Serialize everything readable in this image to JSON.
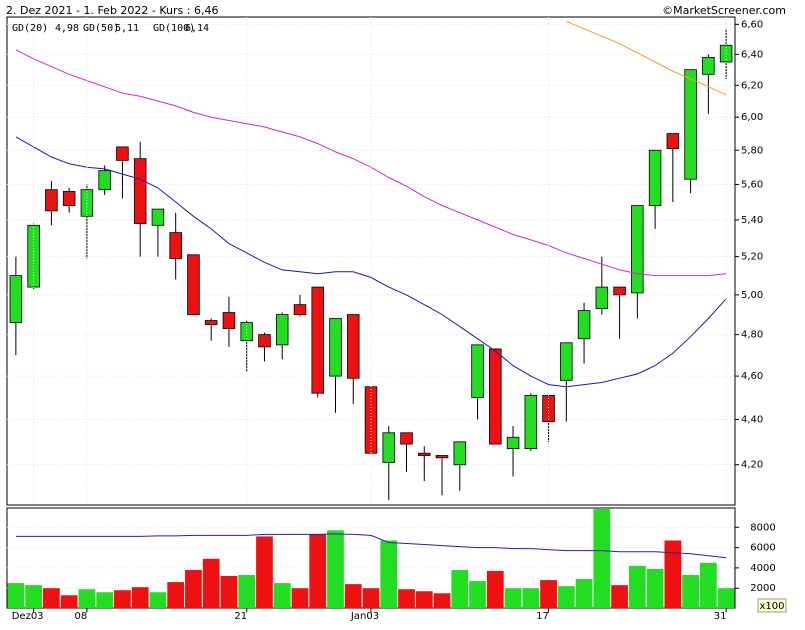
{
  "chart_data": [
    {
      "type": "candlestick",
      "title": "2. Dez 2021 - 1. Feb 2022 - Kurs : 6,46",
      "source": "©MarketScreener.com",
      "log_scale": true,
      "grid": true,
      "up_color": "#22dd22",
      "down_color": "#ee1111",
      "ylim": [
        4.03,
        6.65
      ],
      "yticks": [
        {
          "value": 4.2,
          "label": "4,20"
        },
        {
          "value": 4.4,
          "label": "4,40"
        },
        {
          "value": 4.6,
          "label": "4,60"
        },
        {
          "value": 4.8,
          "label": "4,80"
        },
        {
          "value": 5.0,
          "label": "5,00"
        },
        {
          "value": 5.2,
          "label": "5,20"
        },
        {
          "value": 5.4,
          "label": "5,40"
        },
        {
          "value": 5.6,
          "label": "5,60"
        },
        {
          "value": 5.8,
          "label": "5,80"
        },
        {
          "value": 6.0,
          "label": "6,00"
        },
        {
          "value": 6.2,
          "label": "6,20"
        },
        {
          "value": 6.4,
          "label": "6,40"
        },
        {
          "value": 6.6,
          "label": "6,60"
        }
      ],
      "open": [
        4.86,
        5.04,
        5.57,
        5.56,
        5.42,
        5.57,
        5.82,
        5.75,
        5.37,
        5.33,
        5.21,
        4.87,
        4.91,
        4.77,
        4.8,
        4.75,
        4.95,
        5.04,
        4.6,
        4.9,
        4.55,
        4.21,
        4.34,
        4.25,
        4.24,
        4.2,
        4.5,
        4.73,
        4.27,
        4.27,
        4.51,
        4.58,
        4.78,
        4.93,
        5.04,
        5.01,
        5.48,
        5.9,
        5.63,
        6.27,
        6.35
      ],
      "high": [
        5.2,
        5.38,
        5.62,
        5.58,
        5.6,
        5.71,
        5.82,
        5.85,
        5.46,
        5.44,
        5.21,
        4.88,
        4.99,
        4.87,
        4.81,
        4.91,
        5.0,
        5.04,
        4.88,
        4.9,
        4.55,
        4.37,
        4.34,
        4.28,
        4.24,
        4.3,
        4.75,
        4.73,
        4.37,
        4.52,
        4.51,
        4.76,
        4.96,
        5.2,
        5.04,
        5.48,
        5.8,
        5.9,
        6.3,
        6.4,
        6.57
      ],
      "low": [
        4.7,
        5.03,
        5.37,
        5.44,
        5.19,
        5.54,
        5.52,
        5.2,
        5.2,
        5.08,
        4.9,
        4.77,
        4.74,
        4.62,
        4.67,
        4.68,
        4.89,
        4.5,
        4.43,
        4.47,
        4.25,
        4.05,
        4.17,
        4.13,
        4.07,
        4.09,
        4.4,
        4.29,
        4.15,
        4.26,
        4.3,
        4.39,
        4.66,
        4.9,
        4.78,
        4.88,
        5.35,
        5.5,
        5.55,
        6.02,
        6.24
      ],
      "close": [
        5.1,
        5.37,
        5.45,
        5.48,
        5.57,
        5.68,
        5.74,
        5.38,
        5.46,
        5.19,
        4.9,
        4.85,
        4.83,
        4.86,
        4.74,
        4.9,
        4.9,
        4.52,
        4.88,
        4.59,
        4.25,
        4.34,
        4.29,
        4.24,
        4.23,
        4.3,
        4.75,
        4.29,
        4.32,
        4.51,
        4.39,
        4.76,
        4.92,
        5.04,
        5.0,
        5.48,
        5.8,
        5.81,
        6.3,
        6.38,
        6.46
      ],
      "series": [
        {
          "name": "GD(20)",
          "value_label": "4,98",
          "color": "#1a1aa8",
          "values": [
            5.88,
            5.82,
            5.76,
            5.72,
            5.7,
            5.69,
            5.66,
            5.63,
            5.58,
            5.5,
            5.42,
            5.35,
            5.27,
            5.22,
            5.17,
            5.13,
            5.12,
            5.11,
            5.12,
            5.12,
            5.09,
            5.04,
            5.0,
            4.95,
            4.9,
            4.84,
            4.78,
            4.72,
            4.65,
            4.6,
            4.56,
            4.55,
            4.56,
            4.57,
            4.59,
            4.61,
            4.65,
            4.71,
            4.79,
            4.88,
            4.98
          ]
        },
        {
          "name": "GD(50)",
          "value_label": "5,11",
          "color": "#dd22cc",
          "values": [
            6.43,
            6.37,
            6.32,
            6.27,
            6.23,
            6.19,
            6.15,
            6.13,
            6.1,
            6.07,
            6.03,
            6.0,
            5.98,
            5.96,
            5.94,
            5.91,
            5.88,
            5.84,
            5.79,
            5.75,
            5.7,
            5.64,
            5.59,
            5.53,
            5.48,
            5.44,
            5.4,
            5.36,
            5.32,
            5.29,
            5.26,
            5.22,
            5.19,
            5.16,
            5.13,
            5.11,
            5.1,
            5.1,
            5.1,
            5.1,
            5.11
          ]
        },
        {
          "name": "GD(100)",
          "value_label": "6,14",
          "color": "#f0a020",
          "values": [
            null,
            null,
            null,
            null,
            null,
            null,
            null,
            null,
            null,
            null,
            null,
            null,
            null,
            null,
            null,
            null,
            null,
            null,
            null,
            null,
            null,
            null,
            null,
            null,
            null,
            null,
            null,
            null,
            null,
            null,
            null,
            6.62,
            6.57,
            6.52,
            6.47,
            6.41,
            6.35,
            6.29,
            6.24,
            6.19,
            6.14
          ]
        }
      ]
    },
    {
      "type": "bar",
      "unit_label": "x100",
      "categories": [
        null,
        "Dez03",
        null,
        null,
        "08",
        null,
        null,
        null,
        null,
        null,
        null,
        null,
        null,
        "21",
        null,
        null,
        null,
        null,
        null,
        null,
        "Jan03",
        null,
        null,
        null,
        null,
        null,
        null,
        null,
        null,
        null,
        "17",
        null,
        null,
        null,
        null,
        null,
        null,
        null,
        null,
        null,
        "31"
      ],
      "ylim": [
        0,
        9900
      ],
      "yticks": [
        2000,
        4000,
        6000,
        8000
      ],
      "values": [
        2500,
        2300,
        2000,
        1300,
        1900,
        1600,
        1800,
        2100,
        1600,
        2600,
        3800,
        4900,
        3200,
        3300,
        7100,
        2500,
        2000,
        7300,
        7700,
        2400,
        2000,
        6700,
        1900,
        1700,
        1500,
        3800,
        2700,
        3700,
        2000,
        2000,
        2800,
        2200,
        2900,
        9800,
        2300,
        4200,
        3900,
        6700,
        3300,
        4500,
        2000
      ],
      "average": {
        "color": "#2222aa",
        "values": [
          7100,
          7100,
          7100,
          7100,
          7100,
          7100,
          7100,
          7100,
          7150,
          7150,
          7200,
          7200,
          7200,
          7200,
          7300,
          7300,
          7300,
          7300,
          7350,
          7300,
          7200,
          6500,
          6400,
          6300,
          6200,
          6100,
          6000,
          6000,
          5900,
          5900,
          5800,
          5700,
          5700,
          5700,
          5600,
          5600,
          5600,
          5500,
          5400,
          5200,
          5000
        ]
      }
    }
  ]
}
